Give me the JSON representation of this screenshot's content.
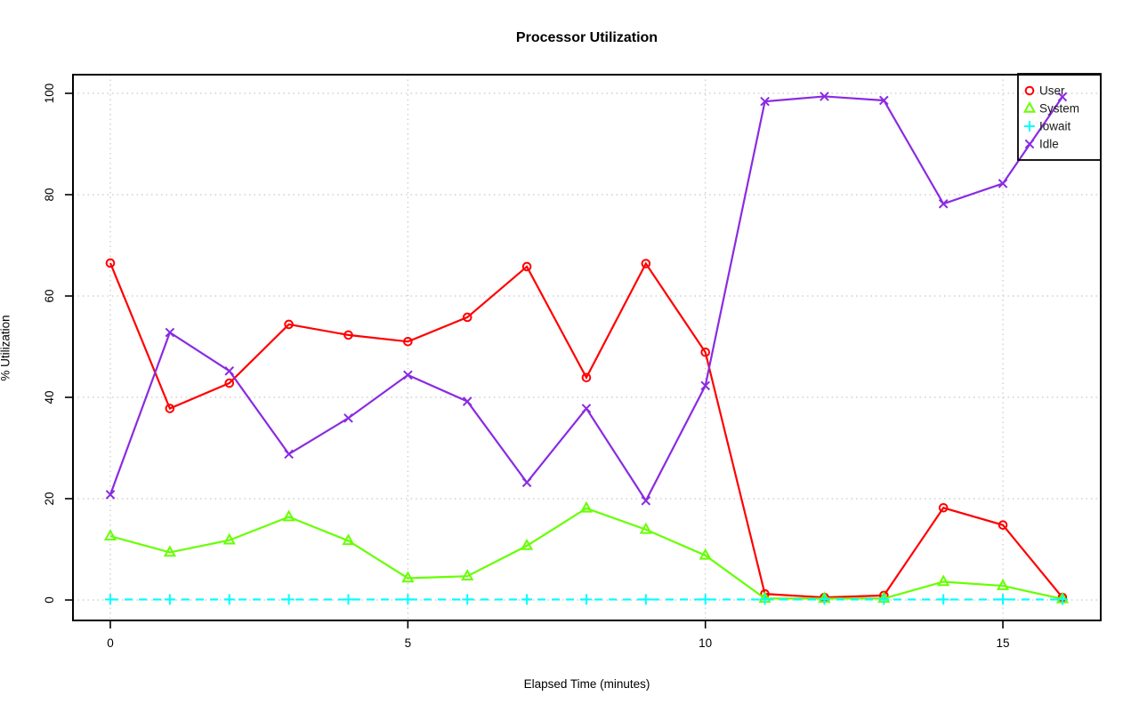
{
  "chart_data": {
    "type": "line",
    "title": "Processor Utilization",
    "xlabel": "Elapsed Time (minutes)",
    "ylabel": "% Utilization",
    "x": [
      0,
      1,
      2,
      3,
      4,
      5,
      6,
      7,
      8,
      9,
      10,
      11,
      12,
      13,
      14,
      15,
      16
    ],
    "xticks": [
      0,
      5,
      10,
      15
    ],
    "yticks": [
      0,
      20,
      40,
      60,
      80,
      100
    ],
    "xlim": [
      -0.64,
      16.64
    ],
    "ylim": [
      -4,
      103.7
    ],
    "grid": true,
    "grid_style": "dotted",
    "grid_color": "#c8c8c8",
    "legend_position": "top-right",
    "legend_transparent": true,
    "series": [
      {
        "name": "User",
        "color": "#ff0000",
        "marker": "circle",
        "line": "solid",
        "values": [
          66.5,
          37.8,
          42.8,
          54.4,
          52.3,
          51.0,
          55.8,
          65.8,
          43.9,
          66.4,
          48.9,
          1.2,
          0.5,
          0.9,
          18.2,
          14.8,
          0.5
        ]
      },
      {
        "name": "System",
        "color": "#66ff00",
        "marker": "triangle",
        "line": "solid",
        "values": [
          12.6,
          9.4,
          11.8,
          16.4,
          11.7,
          4.3,
          4.7,
          10.7,
          18.1,
          13.9,
          8.8,
          0.3,
          0.3,
          0.3,
          3.6,
          2.8,
          0.2
        ]
      },
      {
        "name": "Iowait",
        "color": "#00ffff",
        "marker": "plus",
        "line": "dashed",
        "values": [
          0.1,
          0.1,
          0.1,
          0.1,
          0.1,
          0.1,
          0.1,
          0.1,
          0.1,
          0.1,
          0.1,
          0.1,
          0.1,
          0.1,
          0.1,
          0.1,
          0.1
        ]
      },
      {
        "name": "Idle",
        "color": "#8a2be2",
        "marker": "x",
        "line": "solid",
        "values": [
          20.8,
          52.8,
          45.2,
          28.8,
          35.9,
          44.4,
          39.2,
          23.2,
          37.8,
          19.6,
          42.3,
          98.4,
          99.4,
          98.6,
          78.2,
          82.2,
          99.3
        ]
      }
    ]
  }
}
